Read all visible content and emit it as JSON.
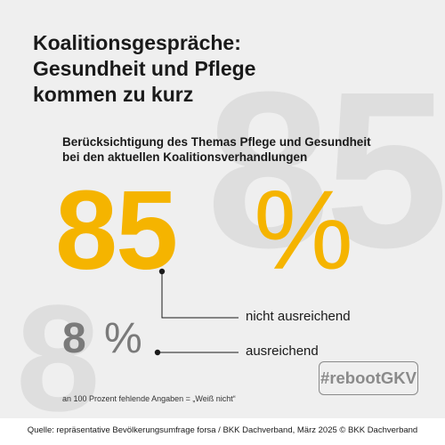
{
  "title": "Koalitionsgespräche: Gesundheit und Pflege kommen zu kurz",
  "background_numbers": {
    "big": "85",
    "small": "8"
  },
  "chart_data": {
    "type": "table",
    "title": "Berücksichtigung des Themas Pflege und Gesundheit bei den aktuellen Koalitionsverhandlungen",
    "unit": "%",
    "categories": [
      "nicht ausreichend",
      "ausreichend"
    ],
    "values": [
      85,
      8
    ],
    "colors": [
      "#f5b400",
      "#7a7a7a"
    ]
  },
  "results": [
    {
      "value": "85",
      "unit": "%",
      "label": "nicht ausreichend"
    },
    {
      "value": "8",
      "unit": "%",
      "label": "ausreichend"
    }
  ],
  "footnote": "an 100 Prozent fehlende Angaben = „Weiß nicht“",
  "hashtag": "#rebootGKV",
  "source": "Quelle: repräsentative Bevölkerungsumfrage forsa / BKK Dachverband, März 2025  © BKK Dachverband",
  "colors": {
    "accent": "#f5b400",
    "secondary": "#7a7a7a",
    "panel": "#efefef"
  }
}
